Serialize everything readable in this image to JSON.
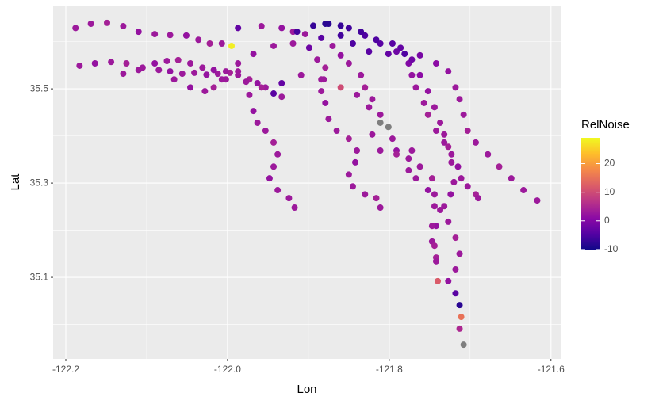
{
  "chart_data": {
    "type": "scatter",
    "x_label": "Lon",
    "y_label": "Lat",
    "xlim": [
      -122.2157,
      -121.588
    ],
    "ylim": [
      34.927,
      35.675
    ],
    "xticks": [
      -122.2,
      {
        "value": -122,
        "label": "-122.0"
      },
      -121.8,
      -121.6
    ],
    "yticks": [
      35.1,
      35.3,
      35.5
    ],
    "grid": true,
    "na_color": "#7f7f7f",
    "colorbar": {
      "title": "RelNoise",
      "lim": [
        -10.3,
        29
      ],
      "ticks": [
        -10,
        0,
        10,
        20
      ],
      "colors": [
        "#0d0887",
        "#5302a3",
        "#8b0aa5",
        "#b83289",
        "#db5c68",
        "#f48849",
        "#febd2a",
        "#f0f921"
      ]
    },
    "series": [
      {
        "x": [
          -122.188,
          -122.169,
          -122.149,
          -122.129,
          -122.11,
          -122.09,
          -122.071,
          -122.051,
          -122.036,
          -122.022,
          -122.007,
          -121.995
        ],
        "values": [
          35.629,
          35.638,
          35.64,
          35.633,
          35.621,
          35.616,
          35.614,
          35.613,
          35.604,
          35.596,
          35.596,
          35.591
        ],
        "colors": [
          3,
          3,
          4,
          3,
          2,
          3,
          3,
          2,
          3,
          4,
          3,
          28
        ]
      },
      {
        "x": [
          -122.183,
          -122.164,
          -122.144,
          -122.125,
          -122.105,
          -122.085,
          -122.071,
          -122.056,
          -122.041,
          -122.026,
          -122.012,
          -121.997,
          -121.987
        ],
        "values": [
          35.549,
          35.554,
          35.557,
          35.554,
          35.545,
          35.54,
          35.537,
          35.532,
          35.534,
          35.53,
          35.532,
          35.534,
          35.537
        ],
        "colors": [
          3,
          2,
          3,
          4,
          3,
          3,
          2,
          3,
          3,
          2,
          3,
          4,
          3
        ]
      },
      {
        "x": [
          -122.129,
          -122.11,
          -122.09,
          -122.075,
          -122.061,
          -122.046,
          -122.031,
          -122.017,
          -122.002,
          -121.987,
          -121.973,
          -121.963,
          -121.953,
          -121.943,
          -121.933
        ],
        "values": [
          35.532,
          35.54,
          35.554,
          35.559,
          35.561,
          35.554,
          35.545,
          35.54,
          35.537,
          35.529,
          35.52,
          35.512,
          35.503,
          35.49,
          35.483
        ],
        "colors": [
          3,
          3,
          2,
          3,
          4,
          3,
          3,
          2,
          3,
          3,
          4,
          2,
          3,
          -4,
          3
        ]
      },
      {
        "x": [
          -121.973,
          -121.968,
          -121.963,
          -121.953,
          -121.943,
          -121.938,
          -121.943,
          -121.948,
          -121.938,
          -121.924,
          -121.917
        ],
        "values": [
          35.487,
          35.453,
          35.428,
          35.411,
          35.386,
          35.361,
          35.335,
          35.31,
          35.285,
          35.268,
          35.248
        ],
        "colors": [
          3,
          2,
          3,
          3,
          4,
          3,
          3,
          2,
          3,
          3,
          3
        ]
      },
      {
        "x": [
          -122.066,
          -122.046,
          -122.028,
          -122.017,
          -122.002
        ],
        "values": [
          35.52,
          35.503,
          35.495,
          35.503,
          35.52
        ],
        "colors": [
          3,
          2,
          3,
          4,
          3
        ]
      },
      {
        "x": [
          -121.987,
          -121.968,
          -121.943,
          -121.919,
          -121.899,
          -121.889,
          -121.879,
          -121.881,
          -121.884,
          -121.879,
          -121.875,
          -121.865,
          -121.85,
          -121.84,
          -121.842,
          -121.85,
          -121.845,
          -121.83,
          -121.816,
          -121.811
        ],
        "values": [
          35.554,
          35.574,
          35.591,
          35.596,
          35.587,
          35.562,
          35.545,
          35.52,
          35.495,
          35.47,
          35.436,
          35.411,
          35.394,
          35.369,
          35.344,
          35.318,
          35.293,
          35.276,
          35.268,
          35.248
        ],
        "colors": [
          3,
          2,
          3,
          3,
          -2,
          3,
          4,
          3,
          3,
          2,
          3,
          3,
          4,
          3,
          2,
          3,
          3,
          3,
          4,
          3
        ]
      },
      {
        "x": [
          -121.987,
          -121.958,
          -121.933,
          -121.919,
          -121.904,
          -121.884,
          -121.87,
          -121.86,
          -121.85,
          -121.835,
          -121.83,
          -121.821,
          -121.811,
          -121.801,
          -121.796,
          -121.791,
          -121.776,
          -121.762,
          -121.747,
          -121.744,
          -121.737,
          -121.742,
          -121.747,
          -121.742,
          -121.74
        ],
        "values": [
          35.629,
          35.633,
          35.629,
          35.621,
          35.616,
          35.608,
          35.591,
          35.571,
          35.554,
          35.529,
          35.503,
          35.478,
          35.445,
          35.419,
          35.394,
          35.369,
          35.352,
          35.335,
          35.31,
          35.276,
          35.243,
          35.209,
          35.176,
          35.142,
          35.092
        ],
        "colors": [
          -3,
          3,
          2,
          3,
          3,
          -4,
          3,
          2,
          3,
          3,
          4,
          3,
          3,
          null,
          3,
          2,
          3,
          3,
          4,
          3,
          3,
          2,
          3,
          4,
          12
        ]
      },
      {
        "x": [
          -121.914,
          -121.894,
          -121.875,
          -121.85,
          -121.83,
          -121.811,
          -121.791,
          -121.776,
          -121.772,
          -121.767,
          -121.757,
          -121.752,
          -121.742,
          -121.732,
          -121.723,
          -121.715,
          -121.711,
          -121.703,
          -121.693,
          -121.69
        ],
        "values": [
          35.621,
          35.634,
          35.638,
          35.629,
          35.613,
          35.596,
          35.579,
          35.554,
          35.529,
          35.503,
          35.47,
          35.445,
          35.411,
          35.386,
          35.361,
          35.335,
          35.31,
          35.293,
          35.276,
          35.268
        ],
        "colors": [
          -6,
          -7,
          -8,
          -6,
          -5,
          -4,
          -2,
          0,
          2,
          3,
          3,
          4,
          3,
          3,
          3,
          2,
          3,
          3,
          4,
          3
        ]
      },
      {
        "x": [
          -121.879,
          -121.86,
          -121.835,
          -121.816,
          -121.796,
          -121.786,
          -121.762,
          -121.742,
          -121.727,
          -121.718,
          -121.713,
          -121.708,
          -121.703,
          -121.693,
          -121.678,
          -121.664,
          -121.649,
          -121.634,
          -121.617
        ],
        "values": [
          35.638,
          35.634,
          35.621,
          35.604,
          35.596,
          35.587,
          35.571,
          35.554,
          35.537,
          35.503,
          35.478,
          35.445,
          35.411,
          35.386,
          35.361,
          35.335,
          35.31,
          35.285,
          35.263
        ],
        "colors": [
          -8,
          -7,
          -6,
          -5,
          -4,
          -3,
          -1,
          1,
          2,
          3,
          3,
          3,
          4,
          3,
          3,
          4,
          3,
          3,
          3
        ]
      },
      {
        "x": [
          -121.86,
          -121.845,
          -121.825,
          -121.801,
          -121.781,
          -121.772,
          -121.762,
          -121.752,
          -121.744,
          -121.737,
          -121.732,
          -121.727,
          -121.723,
          -121.72,
          -121.724,
          -121.732,
          -121.727,
          -121.718,
          -121.713,
          -121.718,
          -121.727,
          -121.718,
          -121.713,
          -121.711,
          -121.713,
          -121.708
        ],
        "values": [
          35.613,
          35.596,
          35.579,
          35.574,
          35.574,
          35.562,
          35.529,
          35.495,
          35.461,
          35.428,
          35.403,
          35.377,
          35.344,
          35.302,
          35.276,
          35.251,
          35.218,
          35.184,
          35.15,
          35.117,
          35.092,
          35.066,
          35.041,
          35.016,
          34.991,
          34.957
        ],
        "colors": [
          -6,
          -5,
          -4,
          -3,
          -5,
          -2,
          1,
          2,
          3,
          3,
          3,
          4,
          3,
          3,
          2,
          3,
          3,
          4,
          3,
          3,
          2,
          -4,
          -8,
          15,
          5,
          null
        ]
      },
      {
        "x": [
          -122.007,
          -121.977,
          -121.958,
          -121.933,
          -121.909,
          -121.884,
          -121.86,
          -121.84,
          -121.825,
          -121.811,
          -121.821,
          -121.811,
          -121.791,
          -121.772
        ],
        "values": [
          35.52,
          35.515,
          35.503,
          35.512,
          35.529,
          35.52,
          35.503,
          35.487,
          35.461,
          35.428,
          35.403,
          35.369,
          35.361,
          35.369
        ],
        "colors": [
          3,
          3,
          4,
          -3,
          3,
          3,
          10,
          3,
          3,
          null,
          3,
          3,
          4,
          3
        ]
      },
      {
        "x": [
          -121.776,
          -121.767,
          -121.752,
          -121.744,
          -121.747,
          -121.744,
          -121.742
        ],
        "values": [
          35.327,
          35.31,
          35.285,
          35.251,
          35.209,
          35.167,
          35.134
        ],
        "colors": [
          3,
          3,
          2,
          3,
          3,
          4,
          3
        ]
      }
    ]
  }
}
